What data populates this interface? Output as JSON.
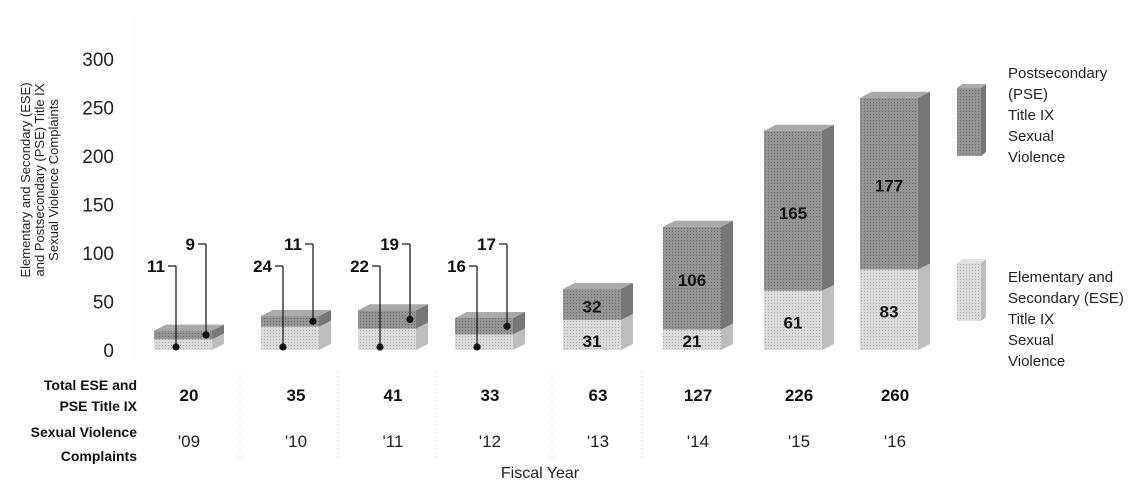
{
  "chart_data": {
    "type": "bar",
    "stacked": true,
    "ylabel": "Elementary and Secondary (ESE) and Postsecondary (PSE) Title IX Sexual Violence Complaints",
    "xlabel": "Fiscal Year",
    "ylim": [
      0,
      300
    ],
    "yticks": [
      "0",
      "50",
      "100",
      "150",
      "200",
      "250",
      "300"
    ],
    "categories": [
      "'09",
      "'10",
      "'11",
      "'12",
      "'13",
      "'14",
      "'15",
      "'16"
    ],
    "series": [
      {
        "name": "Elementary and Secondary (ESE) Title IX Sexual Violence",
        "color": "#d6d6d6",
        "values": [
          11,
          24,
          22,
          16,
          31,
          21,
          61,
          83
        ]
      },
      {
        "name": "Postsecondary (PSE) Title IX Sexual Violence",
        "color": "#8e8e8e",
        "values": [
          9,
          11,
          19,
          17,
          32,
          106,
          165,
          177
        ]
      }
    ],
    "totals_label": "Total ESE and PSE Title IX Sexual Violence Complaints",
    "totals": [
      "20",
      "35",
      "41",
      "33",
      "63",
      "127",
      "226",
      "260"
    ],
    "legend_position": "right"
  }
}
